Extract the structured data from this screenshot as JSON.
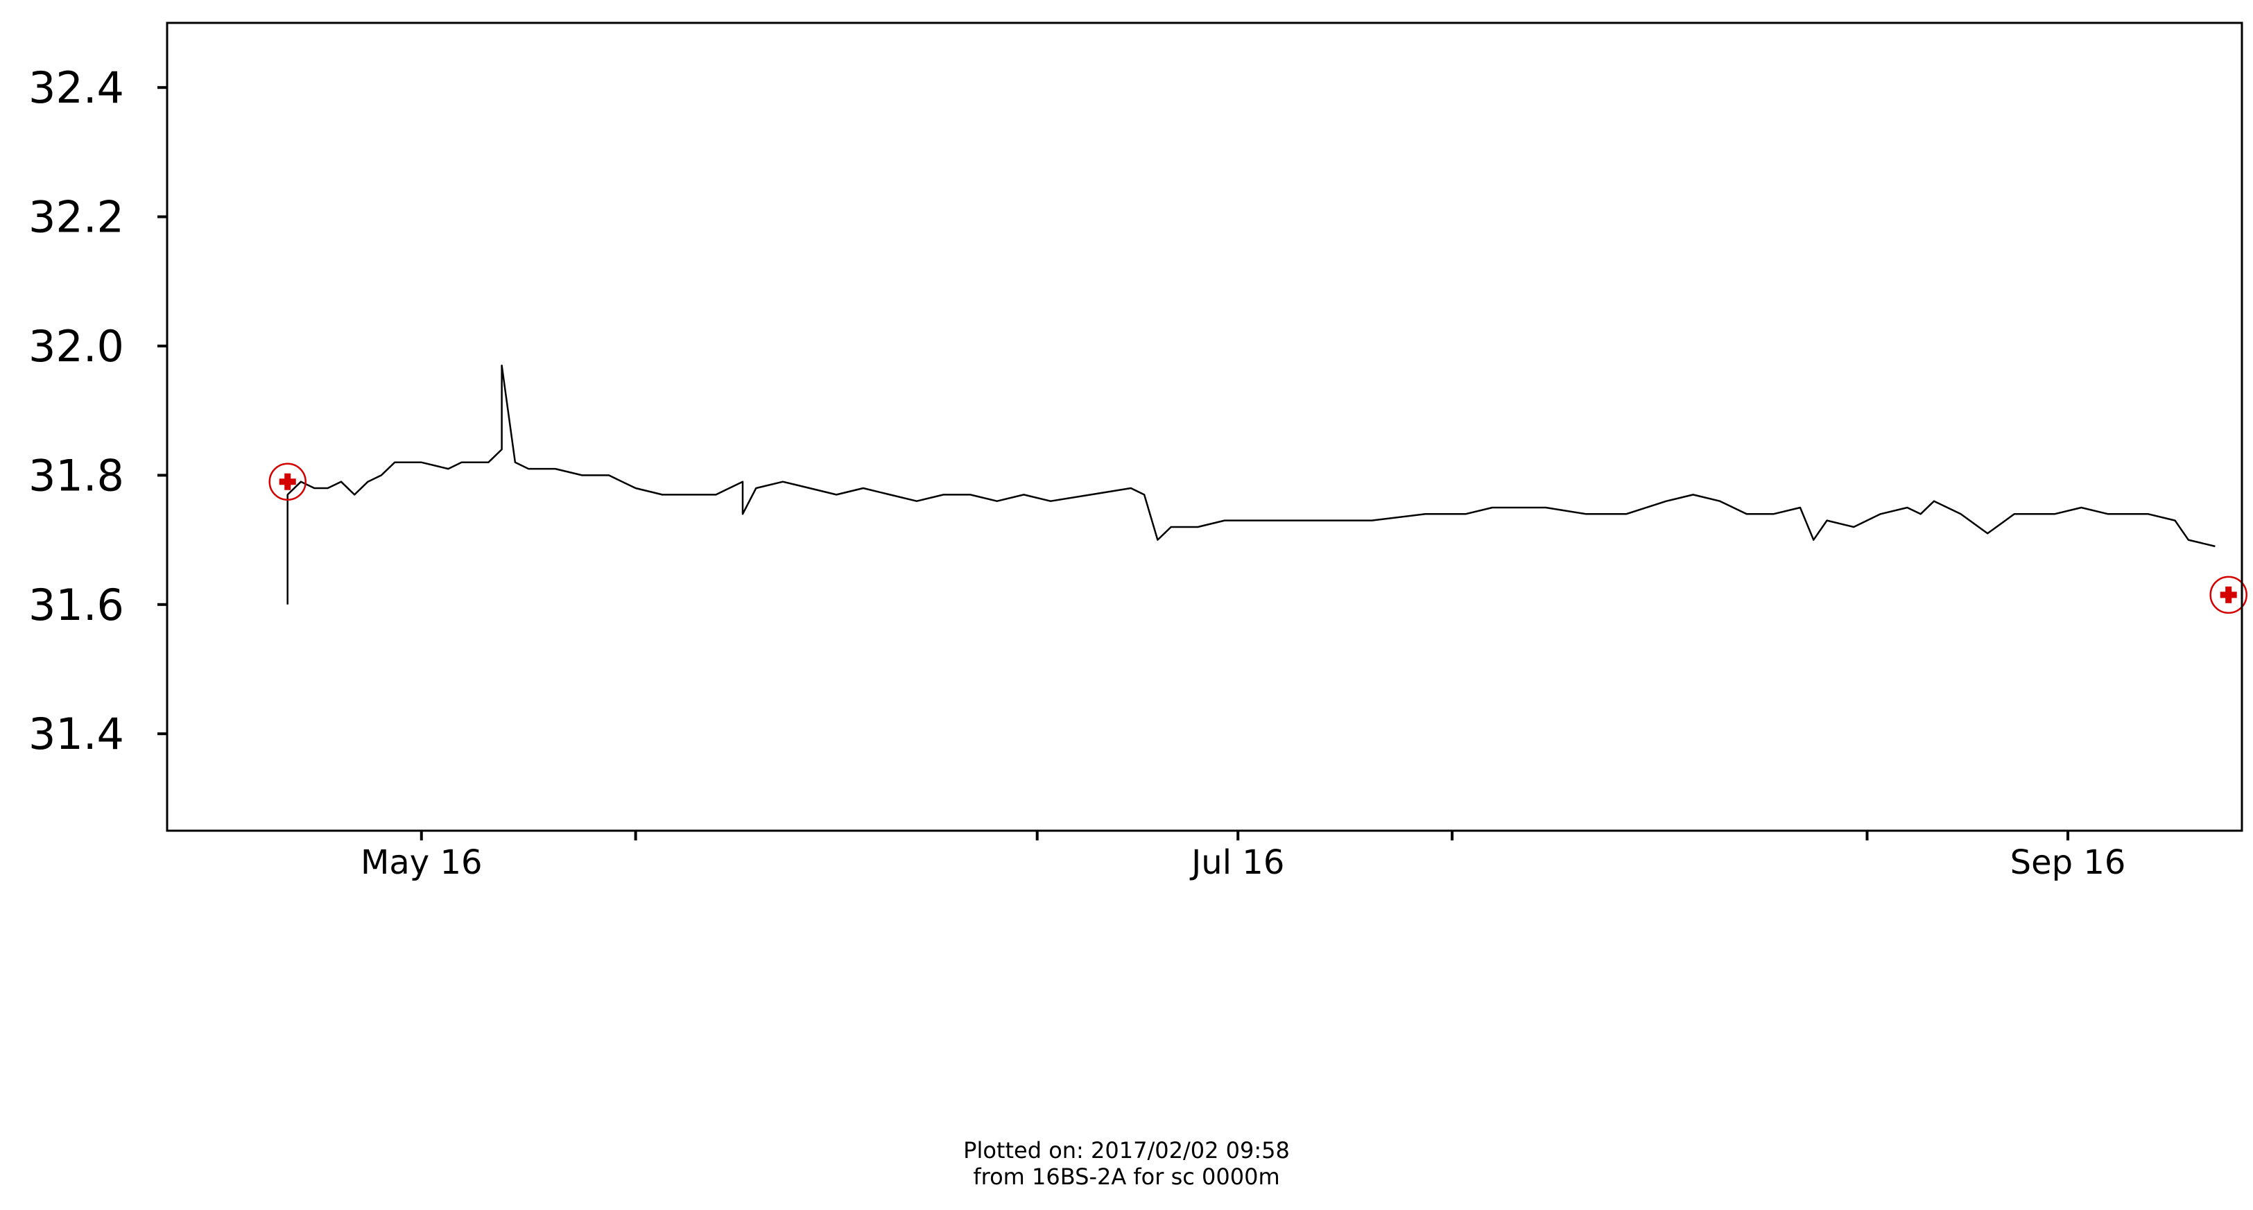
{
  "chart_data": {
    "type": "line",
    "title": "",
    "xlabel": "",
    "ylabel": "",
    "xlim": [
      "2016-04-27",
      "2016-09-29"
    ],
    "ylim": [
      31.25,
      32.5
    ],
    "y_ticks": [
      31.4,
      31.6,
      31.8,
      32.0,
      32.2,
      32.4
    ],
    "y_tick_labels": [
      "31.4",
      "31.6",
      "31.8",
      "32.0",
      "32.2",
      "32.4"
    ],
    "x_ticks": [
      {
        "date": "2016-05-16",
        "label": "May 16"
      },
      {
        "date": "2016-06-01",
        "label": ""
      },
      {
        "date": "2016-07-01",
        "label": ""
      },
      {
        "date": "2016-07-16",
        "label": "Jul 16"
      },
      {
        "date": "2016-08-01",
        "label": ""
      },
      {
        "date": "2016-09-01",
        "label": ""
      },
      {
        "date": "2016-09-16",
        "label": "Sep 16"
      },
      {
        "date": "2016-10-01",
        "label": ""
      }
    ],
    "grid": false,
    "series": [
      {
        "color": "#000000",
        "points": [
          [
            "2016-05-06",
            31.6
          ],
          [
            "2016-05-06",
            31.77
          ],
          [
            "2016-05-07",
            31.79
          ],
          [
            "2016-05-08",
            31.78
          ],
          [
            "2016-05-09",
            31.78
          ],
          [
            "2016-05-10",
            31.79
          ],
          [
            "2016-05-11",
            31.77
          ],
          [
            "2016-05-12",
            31.79
          ],
          [
            "2016-05-13",
            31.8
          ],
          [
            "2016-05-14",
            31.82
          ],
          [
            "2016-05-16",
            31.82
          ],
          [
            "2016-05-18",
            31.81
          ],
          [
            "2016-05-19",
            31.82
          ],
          [
            "2016-05-20",
            31.82
          ],
          [
            "2016-05-21",
            31.82
          ],
          [
            "2016-05-22",
            31.84
          ],
          [
            "2016-05-22",
            31.97
          ],
          [
            "2016-05-23",
            31.82
          ],
          [
            "2016-05-24",
            31.81
          ],
          [
            "2016-05-26",
            31.81
          ],
          [
            "2016-05-28",
            31.8
          ],
          [
            "2016-05-30",
            31.8
          ],
          [
            "2016-06-01",
            31.78
          ],
          [
            "2016-06-03",
            31.77
          ],
          [
            "2016-06-05",
            31.77
          ],
          [
            "2016-06-07",
            31.77
          ],
          [
            "2016-06-08",
            31.78
          ],
          [
            "2016-06-09",
            31.79
          ],
          [
            "2016-06-09",
            31.74
          ],
          [
            "2016-06-10",
            31.78
          ],
          [
            "2016-06-12",
            31.79
          ],
          [
            "2016-06-14",
            31.78
          ],
          [
            "2016-06-16",
            31.77
          ],
          [
            "2016-06-18",
            31.78
          ],
          [
            "2016-06-20",
            31.77
          ],
          [
            "2016-06-22",
            31.76
          ],
          [
            "2016-06-24",
            31.77
          ],
          [
            "2016-06-26",
            31.77
          ],
          [
            "2016-06-28",
            31.76
          ],
          [
            "2016-06-30",
            31.77
          ],
          [
            "2016-07-02",
            31.76
          ],
          [
            "2016-07-05",
            31.77
          ],
          [
            "2016-07-08",
            31.78
          ],
          [
            "2016-07-09",
            31.77
          ],
          [
            "2016-07-10",
            31.7
          ],
          [
            "2016-07-11",
            31.72
          ],
          [
            "2016-07-13",
            31.72
          ],
          [
            "2016-07-15",
            31.73
          ],
          [
            "2016-07-18",
            31.73
          ],
          [
            "2016-07-22",
            31.73
          ],
          [
            "2016-07-26",
            31.73
          ],
          [
            "2016-07-30",
            31.74
          ],
          [
            "2016-08-02",
            31.74
          ],
          [
            "2016-08-04",
            31.75
          ],
          [
            "2016-08-06",
            31.75
          ],
          [
            "2016-08-08",
            31.75
          ],
          [
            "2016-08-11",
            31.74
          ],
          [
            "2016-08-14",
            31.74
          ],
          [
            "2016-08-17",
            31.76
          ],
          [
            "2016-08-19",
            31.77
          ],
          [
            "2016-08-21",
            31.76
          ],
          [
            "2016-08-23",
            31.74
          ],
          [
            "2016-08-25",
            31.74
          ],
          [
            "2016-08-27",
            31.75
          ],
          [
            "2016-08-28",
            31.7
          ],
          [
            "2016-08-29",
            31.73
          ],
          [
            "2016-08-31",
            31.72
          ],
          [
            "2016-09-02",
            31.74
          ],
          [
            "2016-09-04",
            31.75
          ],
          [
            "2016-09-05",
            31.74
          ],
          [
            "2016-09-06",
            31.76
          ],
          [
            "2016-09-08",
            31.74
          ],
          [
            "2016-09-10",
            31.71
          ],
          [
            "2016-09-12",
            31.74
          ],
          [
            "2016-09-15",
            31.74
          ],
          [
            "2016-09-17",
            31.75
          ],
          [
            "2016-09-19",
            31.74
          ],
          [
            "2016-09-22",
            31.74
          ],
          [
            "2016-09-24",
            31.73
          ],
          [
            "2016-09-25",
            31.7
          ],
          [
            "2016-09-27",
            31.69
          ]
        ]
      }
    ],
    "markers": [
      {
        "x": "2016-05-06",
        "y": 31.79,
        "color": "#d40000"
      },
      {
        "x": "2016-09-28",
        "y": 31.615,
        "color": "#d40000"
      }
    ]
  },
  "footer": {
    "line1": "Plotted on: 2017/02/02 09:58",
    "line2": "from 16BS-2A for sc 0000m"
  }
}
